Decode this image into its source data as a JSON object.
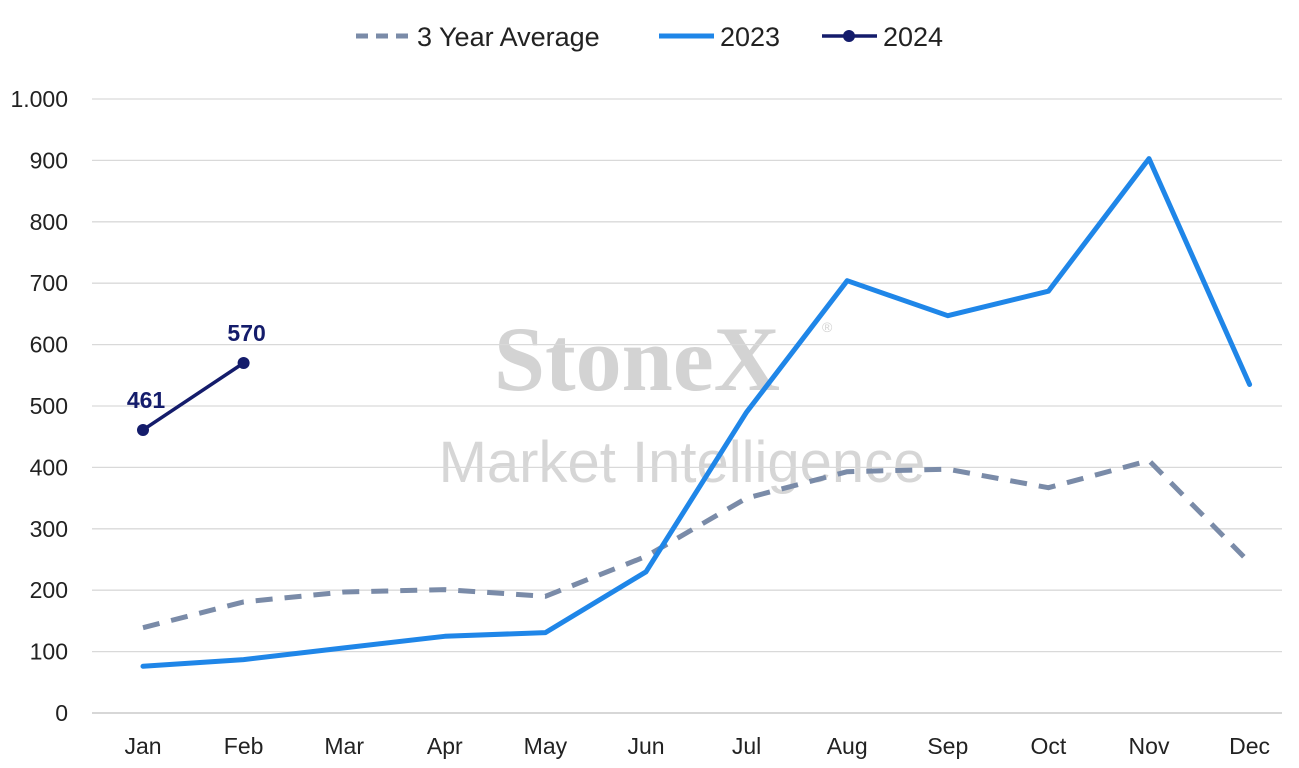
{
  "chart_data": {
    "type": "line",
    "title": "",
    "xlabel": "",
    "ylabel": "",
    "categories": [
      "Jan",
      "Feb",
      "Mar",
      "Apr",
      "May",
      "Jun",
      "Jul",
      "Aug",
      "Sep",
      "Oct",
      "Nov",
      "Dec"
    ],
    "ylim": [
      0,
      1000
    ],
    "yticks": [
      0,
      100,
      200,
      300,
      400,
      500,
      600,
      700,
      800,
      900,
      1000
    ],
    "ytick_labels": [
      "0",
      "100",
      "200",
      "300",
      "400",
      "500",
      "600",
      "700",
      "800",
      "900",
      "1.000"
    ],
    "grid": "horizontal",
    "legend_position": "top-center",
    "series": [
      {
        "name": "3 Year Average",
        "style": "dashed",
        "color": "#7a8ba8",
        "values": [
          139,
          181,
          197,
          201,
          190,
          255,
          350,
          393,
          397,
          367,
          411,
          245
        ]
      },
      {
        "name": "2023",
        "style": "solid",
        "color": "#1f86e8",
        "values": [
          76,
          87,
          106,
          125,
          131,
          230,
          490,
          704,
          647,
          687,
          903,
          535
        ]
      },
      {
        "name": "2024",
        "style": "solid-markers",
        "color": "#141c6b",
        "values": [
          461,
          570,
          null,
          null,
          null,
          null,
          null,
          null,
          null,
          null,
          null,
          null
        ],
        "data_labels": [
          "461",
          "570"
        ]
      }
    ]
  },
  "watermark": {
    "brand": "StoneX",
    "registered": "®",
    "subtitle": "Market Intelligence"
  },
  "colors": {
    "grid": "#d9d9d9",
    "axis": "#bfbfbf",
    "text": "#222222"
  }
}
